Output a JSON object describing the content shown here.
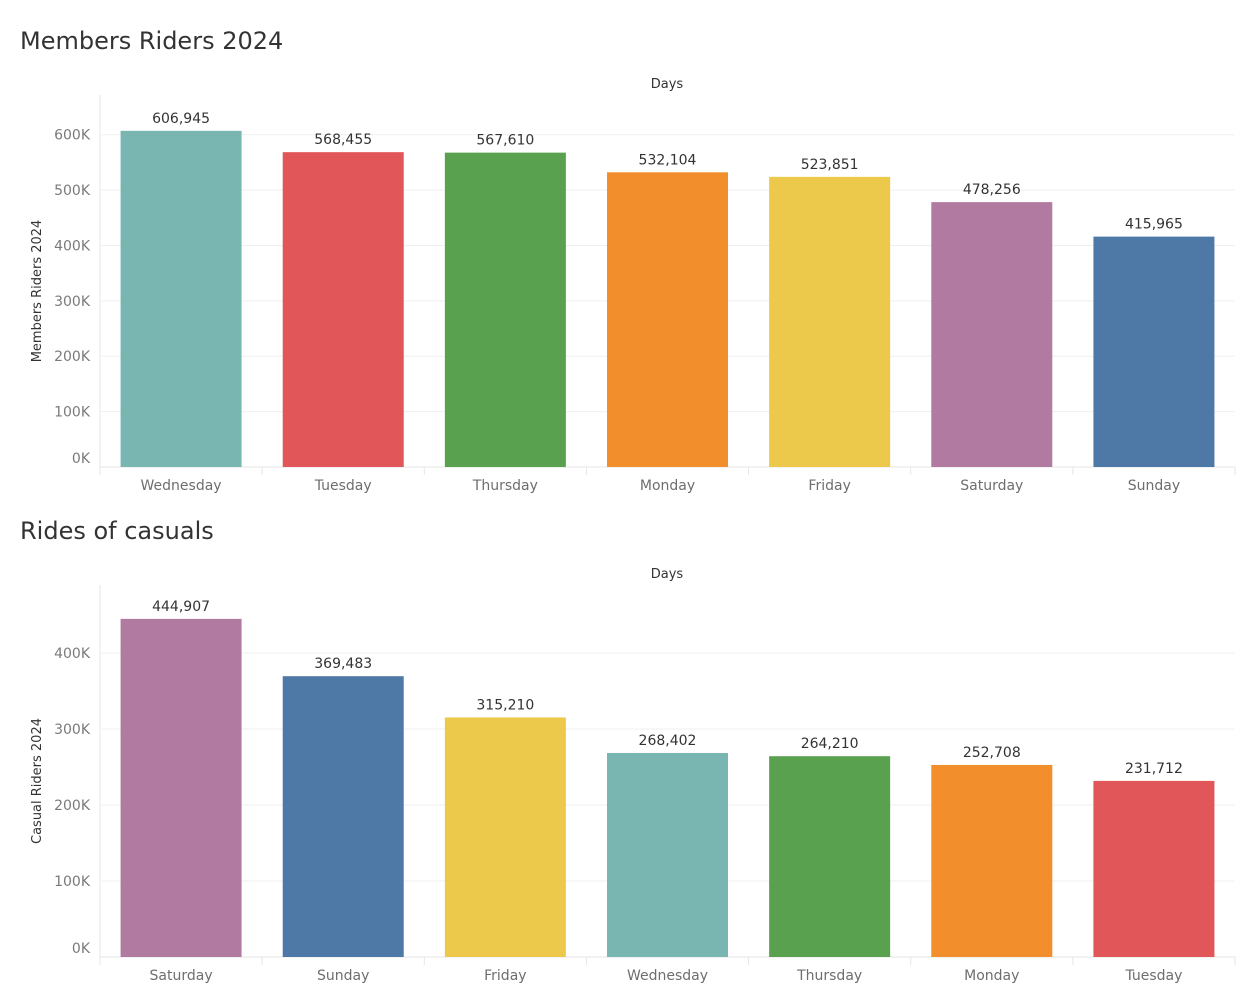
{
  "chart_data": [
    {
      "type": "bar",
      "title": "Members Riders 2024",
      "xlabel": "Days",
      "ylabel": "Members Riders 2024",
      "categories": [
        "Wednesday",
        "Tuesday",
        "Thursday",
        "Monday",
        "Friday",
        "Saturday",
        "Sunday"
      ],
      "values": [
        606945,
        568455,
        567610,
        532104,
        523851,
        478256,
        415965
      ],
      "value_labels": [
        "606,945",
        "568,455",
        "567,610",
        "532,104",
        "523,851",
        "478,256",
        "415,965"
      ],
      "colors": [
        "#79b6b1",
        "#e15759",
        "#59a14f",
        "#f28e2b",
        "#ecc94b",
        "#b07aa1",
        "#4e79a7"
      ],
      "yticks": [
        0,
        100000,
        200000,
        300000,
        400000,
        500000,
        600000
      ],
      "ytick_labels": [
        "0K",
        "100K",
        "200K",
        "300K",
        "400K",
        "500K",
        "600K"
      ],
      "ylim": [
        0,
        650000
      ],
      "grid": true,
      "legend": "none"
    },
    {
      "type": "bar",
      "title": "Rides of casuals",
      "xlabel": "Days",
      "ylabel": "Casual Riders 2024",
      "categories": [
        "Saturday",
        "Sunday",
        "Friday",
        "Wednesday",
        "Thursday",
        "Monday",
        "Tuesday"
      ],
      "values": [
        444907,
        369483,
        315210,
        268402,
        264210,
        252708,
        231712
      ],
      "value_labels": [
        "444,907",
        "369,483",
        "315,210",
        "268,402",
        "264,210",
        "252,708",
        "231,712"
      ],
      "colors": [
        "#b07aa1",
        "#4e79a7",
        "#ecc94b",
        "#79b6b1",
        "#59a14f",
        "#f28e2b",
        "#e15759"
      ],
      "yticks": [
        0,
        100000,
        200000,
        300000,
        400000
      ],
      "ytick_labels": [
        "0K",
        "100K",
        "200K",
        "300K",
        "400K"
      ],
      "ylim": [
        0,
        475000
      ],
      "grid": true,
      "legend": "none"
    }
  ]
}
